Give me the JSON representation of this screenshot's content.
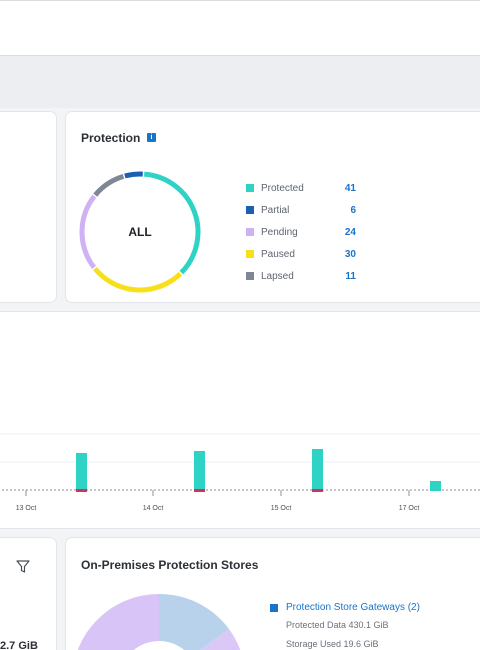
{
  "protection": {
    "title": "Protection",
    "info_icon": "info-icon",
    "center_label": "ALL",
    "legend": [
      {
        "label": "Protected",
        "count": "41",
        "color": "#2ed3c6"
      },
      {
        "label": "Partial",
        "count": "6",
        "color": "#1a5fb4"
      },
      {
        "label": "Pending",
        "count": "24",
        "color": "#cdb3f5"
      },
      {
        "label": "Paused",
        "count": "30",
        "color": "#f7e01a"
      },
      {
        "label": "Lapsed",
        "count": "11",
        "color": "#7f8795"
      }
    ]
  },
  "timeline": {
    "tick_labels": [
      "13 Oct",
      "14 Oct",
      "15 Oct",
      "17 Oct"
    ]
  },
  "stores": {
    "title": "On-Premises Protection Stores",
    "filter_icon": "filter-icon",
    "gateways_label": "Protection Store Gateways (2)",
    "protected_data": "Protected Data 430.1 GiB",
    "storage_used": "Storage Used 19.6 GiB"
  },
  "left_panel": {
    "value_fragment": "2.7 GiB"
  },
  "colors": {
    "accent": "#1a73c9",
    "bar": "#2ed3c6",
    "bar_base": "#d1345b"
  }
}
